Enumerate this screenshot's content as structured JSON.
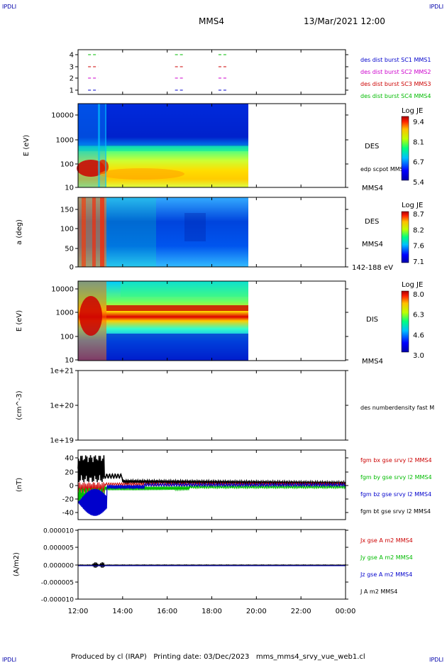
{
  "header": {
    "corner_left": "IPDLI",
    "corner_right": "IPDLI",
    "title": "MMS4",
    "date": "13/Mar/2021 12:00"
  },
  "footer": {
    "text": "Produced by cl (IRAP)   Printing date: 03/Dec/2023   mms_mms4_srvy_vue_web1.cl",
    "corner_left": "IPDLI",
    "corner_right": "IPDLI"
  },
  "colors": {
    "blue": "#0000cc",
    "magenta": "#cc00cc",
    "red": "#cc0000",
    "green": "#00bb00",
    "black": "#000000"
  },
  "chart_data": [
    {
      "type": "scatter",
      "name": "burst-intervals",
      "y_ticks": [
        "1",
        "2",
        "3",
        "4"
      ],
      "legend": [
        {
          "label": "des dist burst SC1 MMS1",
          "color": "#0000cc"
        },
        {
          "label": "des dist burst SC2 MMS2",
          "color": "#cc00cc"
        },
        {
          "label": "des dist burst SC3 MMS3",
          "color": "#cc0000"
        },
        {
          "label": "des dist burst SC4 MMS4",
          "color": "#00bb00"
        }
      ],
      "intervals_hours": [
        [
          12.45,
          12.9
        ],
        [
          16.35,
          16.7
        ],
        [
          18.3,
          18.7
        ]
      ]
    },
    {
      "type": "heatmap",
      "name": "des-energy",
      "ylabel": "E (eV)",
      "y_ticks": [
        "10",
        "100",
        "1000",
        "10000"
      ],
      "label": "DES",
      "sublabel": "edp scpot MMS4",
      "right_label": "MMS4",
      "colorbar": {
        "title": "Log JE",
        "ticks": [
          "9.4",
          "8.1",
          "6.7",
          "5.4"
        ]
      }
    },
    {
      "type": "heatmap",
      "name": "des-pitch-angle",
      "ylabel": "a (deg)",
      "y_ticks": [
        "0",
        "50",
        "100",
        "150"
      ],
      "label": "DES",
      "right_label": "MMS4",
      "energy_range": "142-188 eV",
      "colorbar": {
        "title": "Log JE",
        "ticks": [
          "8.7",
          "8.2",
          "7.6",
          "7.1"
        ]
      }
    },
    {
      "type": "heatmap",
      "name": "dis-energy",
      "ylabel": "E (eV)",
      "y_ticks": [
        "10",
        "100",
        "1000",
        "10000"
      ],
      "label": "DIS",
      "right_label": "MMS4",
      "colorbar": {
        "title": "Log JE",
        "ticks": [
          "8.0",
          "6.3",
          "4.6",
          "3.0"
        ]
      }
    },
    {
      "type": "line",
      "name": "density",
      "ylabel": "(cm^-3)",
      "y_ticks": [
        "1e+19",
        "1e+20",
        "1e+21"
      ],
      "legend": [
        {
          "label": "des numberdensity fast M",
          "color": "#000000"
        }
      ]
    },
    {
      "type": "line",
      "name": "magnetic-field",
      "ylabel": "(nT)",
      "y_ticks": [
        "-40",
        "-20",
        "0",
        "20",
        "40"
      ],
      "ylim": [
        -50,
        50
      ],
      "legend": [
        {
          "label": "fgm bx gse srvy l2 MMS4",
          "color": "#cc0000"
        },
        {
          "label": "fgm by gse srvy l2 MMS4",
          "color": "#00bb00"
        },
        {
          "label": "fgm bz gse srvy l2 MMS4",
          "color": "#0000cc"
        },
        {
          "label": "fgm bt gse srvy l2 MMS4",
          "color": "#000000"
        }
      ]
    },
    {
      "type": "line",
      "name": "current-density",
      "ylabel": "(A/m2)",
      "y_ticks": [
        "-0.000010",
        "-0.000005",
        "0.000000",
        "0.000005",
        "0.000010"
      ],
      "ylim": [
        -1e-05,
        1e-05
      ],
      "legend": [
        {
          "label": "Jx gse A m2 MMS4",
          "color": "#cc0000"
        },
        {
          "label": "Jy gse A m2 MMS4",
          "color": "#00bb00"
        },
        {
          "label": "Jz gse A m2 MMS4",
          "color": "#0000cc"
        },
        {
          "label": "J A m2 MMS4",
          "color": "#000000"
        }
      ]
    }
  ],
  "x_axis": {
    "ticks": [
      "12:00",
      "14:00",
      "16:00",
      "18:00",
      "20:00",
      "22:00",
      "00:00"
    ],
    "hours": [
      12,
      14,
      16,
      18,
      20,
      22,
      24
    ],
    "data_end_hour": 19.65
  }
}
